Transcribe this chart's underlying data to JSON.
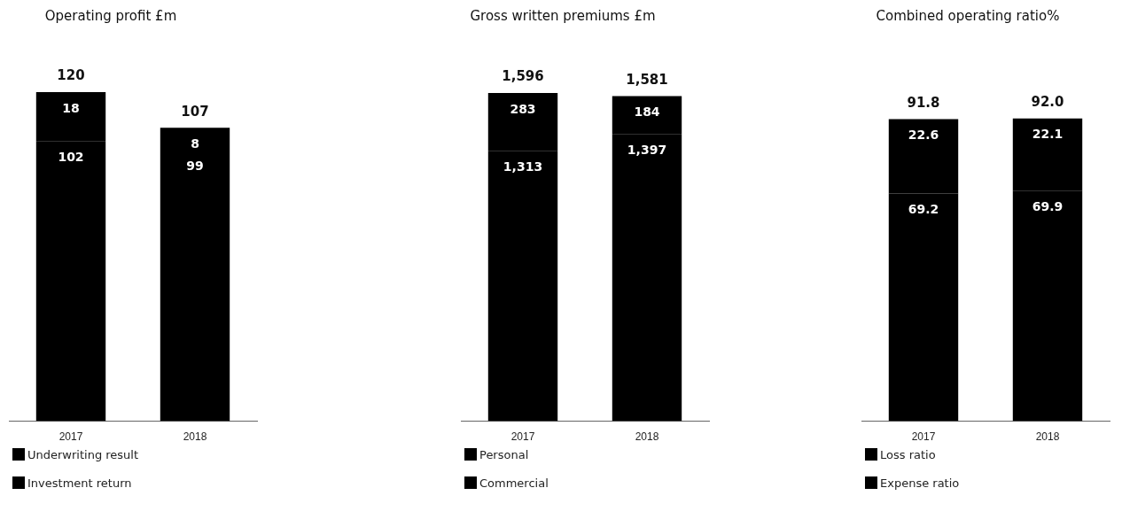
{
  "chart_data": [
    {
      "type": "bar",
      "title": "Operating profit £m",
      "categories": [
        "2017",
        "2018"
      ],
      "stacked": true,
      "data_labels": true,
      "totals": [
        "120",
        "107"
      ],
      "legend": "bottom",
      "grid": false,
      "series": [
        {
          "name": "Underwriting result",
          "color": "#000000",
          "values": [
            102,
            99
          ]
        },
        {
          "name": "Investment return",
          "color": "#000000",
          "values": [
            18,
            8
          ]
        }
      ]
    },
    {
      "type": "bar",
      "title": "Gross written premiums £m",
      "categories": [
        "2017",
        "2018"
      ],
      "stacked": true,
      "totals": [
        "1,596",
        "1,581"
      ],
      "legend": "bottom",
      "grid": false,
      "series": [
        {
          "name": "Personal",
          "color": "#000000",
          "values": [
            1313,
            1397
          ],
          "value_labels": [
            "1,313",
            "1,397"
          ]
        },
        {
          "name": "Commercial",
          "color": "#000000",
          "values": [
            283,
            184
          ],
          "value_labels": [
            "283",
            "184"
          ]
        }
      ]
    },
    {
      "type": "bar",
      "title": "Combined operating ratio%",
      "categories": [
        "2017",
        "2018"
      ],
      "stacked": true,
      "data_labels": true,
      "totals": [
        "91.8",
        "92.0"
      ],
      "legend": "bottom",
      "grid": false,
      "series": [
        {
          "name": "Loss ratio",
          "color": "#000000",
          "values": [
            69.2,
            69.9
          ]
        },
        {
          "name": "Expense ratio",
          "color": "#000000",
          "values": [
            22.6,
            22.1
          ]
        }
      ]
    }
  ]
}
